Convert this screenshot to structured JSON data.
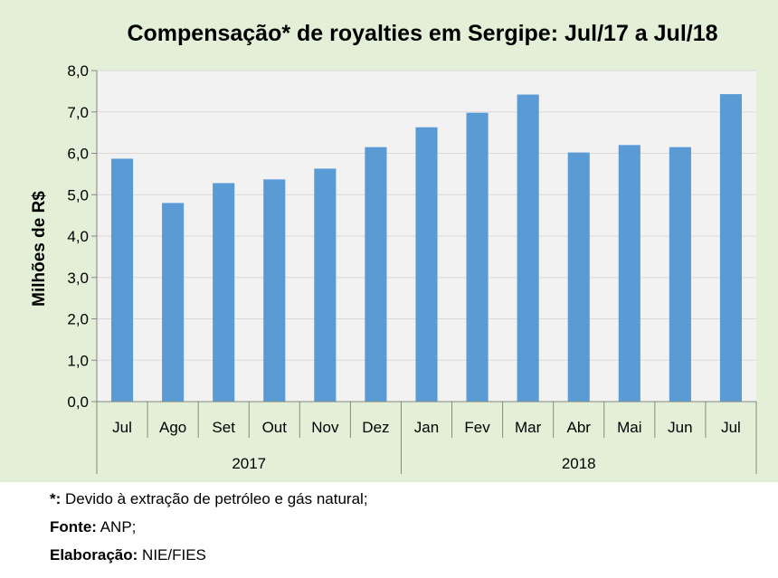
{
  "chart_data": {
    "type": "bar",
    "title": "Compensação* de royalties em Sergipe: Jul/17 a Jul/18",
    "ylabel": "Milhões de R$",
    "xlabel": "",
    "ylim": [
      0,
      8
    ],
    "yticks": [
      "0,0",
      "1,0",
      "2,0",
      "3,0",
      "4,0",
      "5,0",
      "6,0",
      "7,0",
      "8,0"
    ],
    "categories": [
      "Jul",
      "Ago",
      "Set",
      "Out",
      "Nov",
      "Dez",
      "Jan",
      "Fev",
      "Mar",
      "Abr",
      "Mai",
      "Jun",
      "Jul"
    ],
    "values": [
      5.87,
      4.8,
      5.28,
      5.37,
      5.63,
      6.15,
      6.63,
      6.98,
      7.42,
      6.02,
      6.2,
      6.15,
      7.43
    ],
    "groups": [
      {
        "label": "2017",
        "count": 6
      },
      {
        "label": "2018",
        "count": 7
      }
    ],
    "bar_color": "#5b9bd5",
    "plot_background": "#f2f2f2",
    "chart_background": "#e4efd8",
    "grid": true,
    "legend": "none"
  },
  "notes": {
    "asterisk_key": "*:",
    "asterisk_text": " Devido à extração de petróleo e gás natural;",
    "source_key": "Fonte:",
    "source_text": " ANP;",
    "credit_key": "Elaboração:",
    "credit_text": " NIE/FIES"
  }
}
